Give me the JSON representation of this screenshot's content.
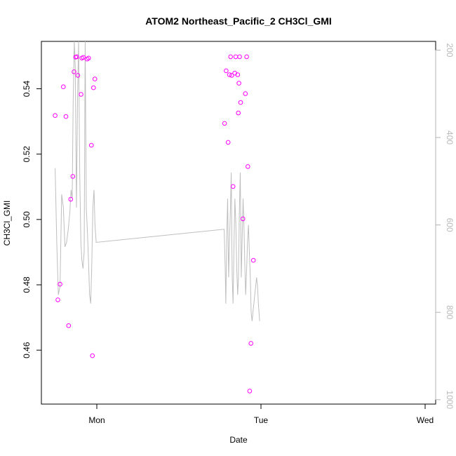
{
  "chart_data": {
    "type": "scatter",
    "title": "ATOM2 Northeast_Pacific_2 CH3Cl_GMI",
    "xlabel": "Date",
    "ylabel": "CH3Cl_GMI",
    "x_tick_labels": [
      "Mon",
      "Tue",
      "Wed"
    ],
    "x_range_days": [
      -0.284,
      2.0
    ],
    "ylim": [
      0.4435,
      0.5545
    ],
    "y_ticks": [
      0.46,
      0.48,
      0.5,
      0.52,
      0.54
    ],
    "y_tick_labels": [
      "0.46",
      "0.48",
      "0.50",
      "0.52",
      "0.54"
    ],
    "y2_ticks": [
      200,
      400,
      600,
      800,
      1000
    ],
    "y2_tick_labels": [
      "200",
      "400",
      "600",
      "800",
      "1000"
    ],
    "y2_range": [
      1010,
      180
    ],
    "grid": false,
    "colors": {
      "points": "#ff00ff",
      "line": "#bebebe",
      "axis": "#000000",
      "right_axis": "#b3b3b3"
    },
    "series": [
      {
        "kind": "points",
        "x": [
          -0.254,
          -0.237,
          -0.224,
          -0.204,
          -0.188,
          -0.172,
          -0.159,
          -0.146,
          -0.139,
          -0.129,
          -0.122,
          -0.116,
          -0.096,
          -0.091,
          -0.082,
          -0.059,
          -0.05,
          -0.033,
          -0.027,
          -0.02,
          -0.012,
          0.778,
          0.788,
          0.8,
          0.808,
          0.815,
          0.822,
          0.83,
          0.84,
          0.846,
          0.858,
          0.862,
          0.866,
          0.87,
          0.876,
          0.89,
          0.905,
          0.913,
          0.92,
          0.931,
          0.939,
          0.954
        ],
        "y": [
          0.5318,
          0.4754,
          0.4802,
          0.5406,
          0.5315,
          0.4675,
          0.5062,
          0.5132,
          0.5452,
          0.5497,
          0.5498,
          0.5441,
          0.5383,
          0.5494,
          0.5496,
          0.5491,
          0.5494,
          0.5227,
          0.4583,
          0.5403,
          0.543,
          0.5294,
          0.5455,
          0.5236,
          0.5443,
          0.5498,
          0.5441,
          0.5101,
          0.5448,
          0.5498,
          0.5443,
          0.5326,
          0.5417,
          0.5498,
          0.5358,
          0.5002,
          0.5385,
          0.5498,
          0.5162,
          0.4475,
          0.4621,
          0.4875
        ]
      },
      {
        "kind": "line",
        "x": [
          -0.254,
          -0.244,
          -0.234,
          -0.224,
          -0.214,
          -0.204,
          -0.194,
          -0.184,
          -0.174,
          -0.164,
          -0.157,
          -0.15,
          -0.144,
          -0.137,
          -0.131,
          -0.124,
          -0.117,
          -0.111,
          -0.104,
          -0.097,
          -0.091,
          -0.084,
          -0.077,
          -0.071,
          -0.064,
          -0.057,
          -0.051,
          -0.044,
          -0.037,
          -0.031,
          -0.024,
          -0.017,
          -0.011,
          -0.004,
          0.776,
          0.782,
          0.786,
          0.792,
          0.797,
          0.803,
          0.808,
          0.814,
          0.819,
          0.825,
          0.83,
          0.836,
          0.841,
          0.847,
          0.852,
          0.858,
          0.863,
          0.869,
          0.874,
          0.88,
          0.885,
          0.891,
          0.896,
          0.902,
          0.907,
          0.913,
          0.918,
          0.924,
          0.929,
          0.935,
          0.94,
          0.946,
          0.951,
          0.957,
          0.962,
          0.968,
          0.973,
          0.979,
          0.984,
          0.988,
          0.992
        ],
        "y": [
          470,
          640,
          760,
          740,
          530,
          560,
          650,
          640,
          610,
          570,
          520,
          540,
          320,
          180,
          240,
          560,
          300,
          180,
          490,
          640,
          680,
          700,
          660,
          180,
          560,
          620,
          680,
          760,
          780,
          700,
          560,
          520,
          600,
          640,
          610,
          700,
          780,
          620,
          540,
          720,
          640,
          560,
          480,
          720,
          780,
          640,
          540,
          600,
          700,
          760,
          720,
          560,
          480,
          720,
          640,
          540,
          600,
          700,
          760,
          700,
          640,
          600,
          660,
          720,
          800,
          820,
          800,
          780,
          760,
          740,
          720,
          740,
          780,
          800,
          820
        ]
      }
    ]
  }
}
